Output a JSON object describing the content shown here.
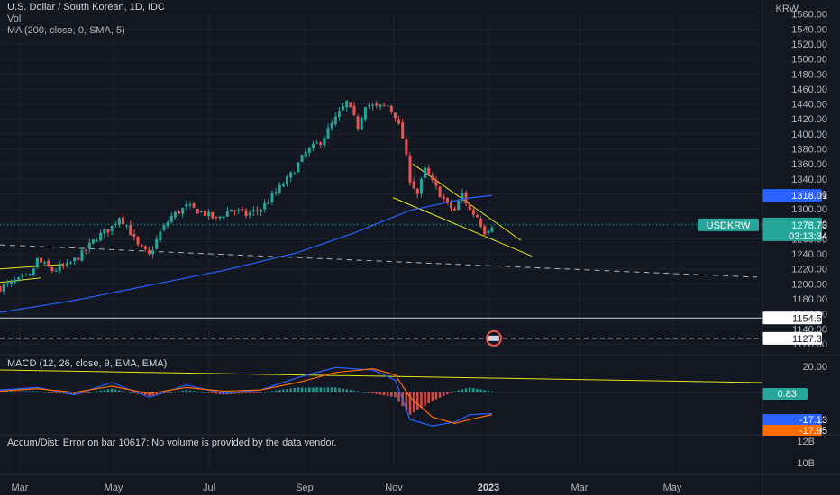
{
  "header": {
    "title": "U.S. Dollar / South Korean, 1D, IDC",
    "vol_label": "Vol",
    "ma_label": "MA (200, close, 0, SMA, 5)",
    "currency": "KRW"
  },
  "colors": {
    "background": "#131722",
    "up": "#26a69a",
    "down": "#ef5350",
    "ma_line": "#2962ff",
    "pattern_line": "#e6e619",
    "macd_line": "#2962ff",
    "signal_line": "#ff6d00"
  },
  "chart_data": {
    "type": "candlestick",
    "symbol": "USDKRW",
    "x_tick_labels": [
      "Mar",
      "May",
      "Jul",
      "Sep",
      "Nov",
      "2023",
      "Mar",
      "May"
    ],
    "y_tick_labels": [
      "1560.00",
      "1540.00",
      "1520.00",
      "1500.00",
      "1480.00",
      "1460.00",
      "1440.00",
      "1420.00",
      "1400.00",
      "1380.00",
      "1360.00",
      "1340.00",
      "1320.00",
      "1300.00",
      "1280.00",
      "1260.00",
      "1240.00",
      "1220.00",
      "1200.00",
      "1180.00",
      "1160.00",
      "1140.00",
      "1120.00"
    ],
    "ylim": [
      1120,
      1562
    ],
    "close_path": [
      {
        "x": 0,
        "y": 1195
      },
      {
        "x": 8,
        "y": 1210
      },
      {
        "x": 10,
        "y": 1232
      },
      {
        "x": 14,
        "y": 1218
      },
      {
        "x": 18,
        "y": 1224
      },
      {
        "x": 22,
        "y": 1240
      },
      {
        "x": 26,
        "y": 1262
      },
      {
        "x": 30,
        "y": 1276
      },
      {
        "x": 32,
        "y": 1290
      },
      {
        "x": 34,
        "y": 1278
      },
      {
        "x": 37,
        "y": 1250
      },
      {
        "x": 40,
        "y": 1238
      },
      {
        "x": 43,
        "y": 1268
      },
      {
        "x": 46,
        "y": 1290
      },
      {
        "x": 50,
        "y": 1303
      },
      {
        "x": 54,
        "y": 1296
      },
      {
        "x": 58,
        "y": 1286
      },
      {
        "x": 62,
        "y": 1300
      },
      {
        "x": 66,
        "y": 1292
      },
      {
        "x": 70,
        "y": 1300
      },
      {
        "x": 74,
        "y": 1322
      },
      {
        "x": 78,
        "y": 1345
      },
      {
        "x": 82,
        "y": 1375
      },
      {
        "x": 86,
        "y": 1390
      },
      {
        "x": 90,
        "y": 1420
      },
      {
        "x": 93,
        "y": 1442
      },
      {
        "x": 96,
        "y": 1410
      },
      {
        "x": 98,
        "y": 1440
      },
      {
        "x": 101,
        "y": 1435
      },
      {
        "x": 104,
        "y": 1438
      },
      {
        "x": 106,
        "y": 1425
      },
      {
        "x": 108,
        "y": 1395
      },
      {
        "x": 110,
        "y": 1340
      },
      {
        "x": 112,
        "y": 1320
      },
      {
        "x": 114,
        "y": 1352
      },
      {
        "x": 116,
        "y": 1335
      },
      {
        "x": 118,
        "y": 1320
      },
      {
        "x": 120,
        "y": 1305
      },
      {
        "x": 122,
        "y": 1298
      },
      {
        "x": 124,
        "y": 1320
      },
      {
        "x": 126,
        "y": 1298
      },
      {
        "x": 128,
        "y": 1290
      },
      {
        "x": 130,
        "y": 1270
      },
      {
        "x": 132,
        "y": 1279
      }
    ],
    "ma200": [
      {
        "x": 0,
        "y": 1162
      },
      {
        "x": 20,
        "y": 1178
      },
      {
        "x": 40,
        "y": 1198
      },
      {
        "x": 60,
        "y": 1218
      },
      {
        "x": 80,
        "y": 1242
      },
      {
        "x": 95,
        "y": 1268
      },
      {
        "x": 110,
        "y": 1298
      },
      {
        "x": 125,
        "y": 1314
      },
      {
        "x": 132,
        "y": 1318
      }
    ],
    "last_price": {
      "label": "USDKRW",
      "value": "1278.73",
      "countdown": "03:13:34"
    },
    "ma_value": "1318.01",
    "horizontal_levels": [
      "1154.50",
      "1127.39"
    ],
    "macd": {
      "label": "MACD (12, 26, close, 9, EMA, EMA)",
      "y_tick_labels": [
        "20.00",
        "0.83",
        "-17.13",
        "-17.95"
      ],
      "histogram_value": "0.83",
      "macd_value": "-17.13",
      "signal_value": "-17.95",
      "macd_line": [
        {
          "x": 0,
          "y": 2
        },
        {
          "x": 10,
          "y": 4
        },
        {
          "x": 20,
          "y": -2
        },
        {
          "x": 30,
          "y": 8
        },
        {
          "x": 40,
          "y": -4
        },
        {
          "x": 50,
          "y": 6
        },
        {
          "x": 60,
          "y": -1
        },
        {
          "x": 70,
          "y": 2
        },
        {
          "x": 80,
          "y": 12
        },
        {
          "x": 90,
          "y": 20
        },
        {
          "x": 100,
          "y": 18
        },
        {
          "x": 106,
          "y": 10
        },
        {
          "x": 110,
          "y": -22
        },
        {
          "x": 116,
          "y": -27
        },
        {
          "x": 122,
          "y": -24
        },
        {
          "x": 126,
          "y": -18
        },
        {
          "x": 132,
          "y": -17.13
        }
      ],
      "signal_line": [
        {
          "x": 0,
          "y": 1
        },
        {
          "x": 10,
          "y": 3
        },
        {
          "x": 20,
          "y": 0
        },
        {
          "x": 30,
          "y": 5
        },
        {
          "x": 40,
          "y": -1
        },
        {
          "x": 50,
          "y": 4
        },
        {
          "x": 60,
          "y": 1
        },
        {
          "x": 70,
          "y": 2
        },
        {
          "x": 80,
          "y": 8
        },
        {
          "x": 90,
          "y": 16
        },
        {
          "x": 100,
          "y": 19
        },
        {
          "x": 106,
          "y": 14
        },
        {
          "x": 110,
          "y": -4
        },
        {
          "x": 116,
          "y": -20
        },
        {
          "x": 122,
          "y": -25
        },
        {
          "x": 126,
          "y": -22
        },
        {
          "x": 132,
          "y": -17.95
        }
      ],
      "ylim": [
        -32,
        26
      ]
    },
    "volume_axis_labels": [
      "12B",
      "10B"
    ],
    "volume_error": "Accum/Dist: Error on bar 10617: No volume is provided by the data vendor."
  }
}
